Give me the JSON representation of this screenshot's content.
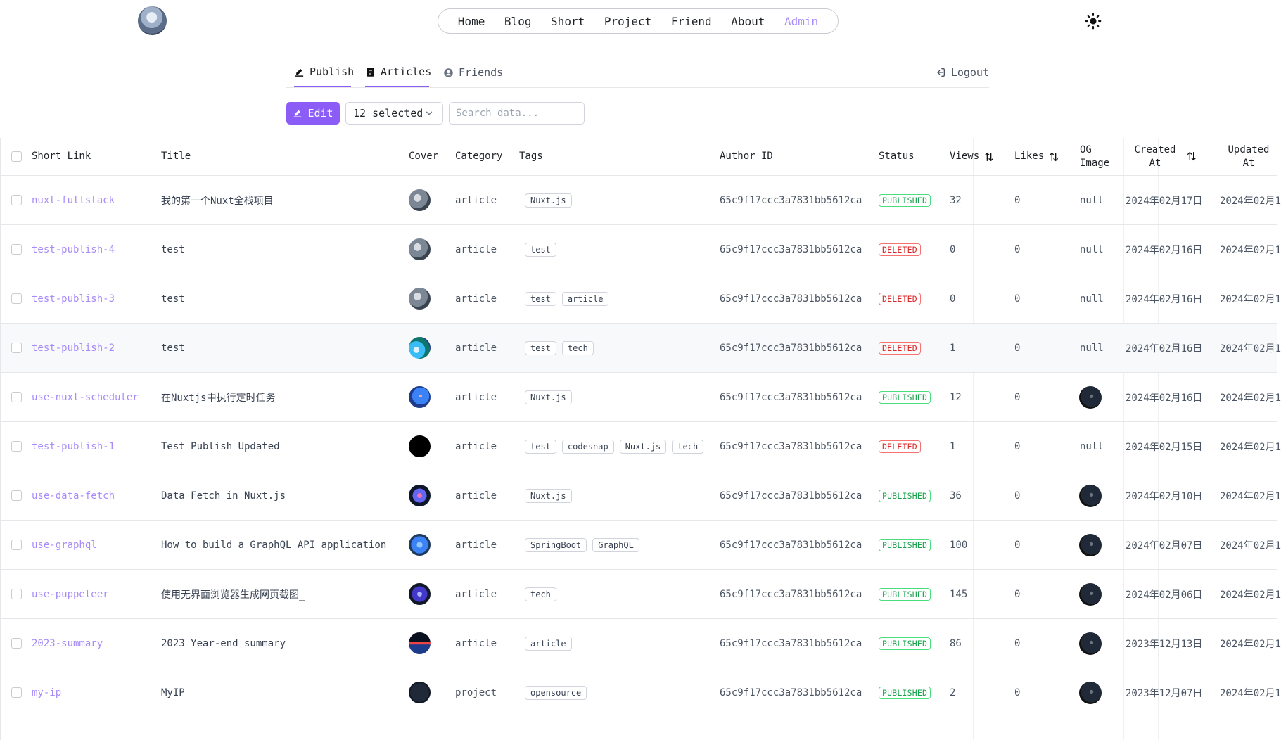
{
  "nav": {
    "items": [
      "Home",
      "Blog",
      "Short",
      "Project",
      "Friend",
      "About",
      "Admin"
    ],
    "active": "Admin"
  },
  "tabs": {
    "publish": "Publish",
    "articles": "Articles",
    "friends": "Friends",
    "logout": "Logout"
  },
  "toolbar": {
    "edit_label": "Edit",
    "selected_label": "12 selected",
    "search_placeholder": "Search data..."
  },
  "columns": {
    "short_link": "Short Link",
    "title": "Title",
    "cover": "Cover",
    "category": "Category",
    "tags": "Tags",
    "author_id": "Author ID",
    "status": "Status",
    "views": "Views",
    "likes": "Likes",
    "og_image_1": "OG",
    "og_image_2": "Image",
    "created_1": "Created",
    "created_2": "At",
    "updated_1": "Updated",
    "updated_2": "At"
  },
  "colors": {
    "accent": "#8b5cf6",
    "link": "#a78bfa",
    "published": "#16a34a",
    "deleted": "#dc2626"
  },
  "rows": [
    {
      "short": "nuxt-fullstack",
      "title": "我的第一个Nuxt全栈项目",
      "category": "article",
      "tags": [
        "Nuxt.js"
      ],
      "author": "65c9f17ccc3a7831bb5612ca",
      "status": "PUBLISHED",
      "views": "32",
      "likes": "0",
      "og": "null",
      "created": "2024年02月17日",
      "updated": "2024年02月1"
    },
    {
      "short": "test-publish-4",
      "title": "test",
      "category": "article",
      "tags": [
        "test"
      ],
      "author": "65c9f17ccc3a7831bb5612ca",
      "status": "DELETED",
      "views": "0",
      "likes": "0",
      "og": "null",
      "created": "2024年02月16日",
      "updated": "2024年02月1"
    },
    {
      "short": "test-publish-3",
      "title": "test",
      "category": "article",
      "tags": [
        "test",
        "article"
      ],
      "author": "65c9f17ccc3a7831bb5612ca",
      "status": "DELETED",
      "views": "0",
      "likes": "0",
      "og": "null",
      "created": "2024年02月16日",
      "updated": "2024年02月1"
    },
    {
      "short": "test-publish-2",
      "title": "test",
      "category": "article",
      "tags": [
        "test",
        "tech"
      ],
      "author": "65c9f17ccc3a7831bb5612ca",
      "status": "DELETED",
      "views": "1",
      "likes": "0",
      "og": "null",
      "created": "2024年02月16日",
      "updated": "2024年02月1"
    },
    {
      "short": "use-nuxt-scheduler",
      "title": "在Nuxtjs中执行定时任务",
      "category": "article",
      "tags": [
        "Nuxt.js"
      ],
      "author": "65c9f17ccc3a7831bb5612ca",
      "status": "PUBLISHED",
      "views": "12",
      "likes": "0",
      "og": "",
      "created": "2024年02月16日",
      "updated": "2024年02月1"
    },
    {
      "short": "test-publish-1",
      "title": "Test Publish Updated",
      "category": "article",
      "tags": [
        "test",
        "codesnap",
        "Nuxt.js",
        "tech"
      ],
      "author": "65c9f17ccc3a7831bb5612ca",
      "status": "DELETED",
      "views": "1",
      "likes": "0",
      "og": "null",
      "created": "2024年02月15日",
      "updated": "2024年02月1"
    },
    {
      "short": "use-data-fetch",
      "title": "Data Fetch in Nuxt.js",
      "category": "article",
      "tags": [
        "Nuxt.js"
      ],
      "author": "65c9f17ccc3a7831bb5612ca",
      "status": "PUBLISHED",
      "views": "36",
      "likes": "0",
      "og": "",
      "created": "2024年02月10日",
      "updated": "2024年02月1"
    },
    {
      "short": "use-graphql",
      "title": "How to build a GraphQL API application",
      "category": "article",
      "tags": [
        "SpringBoot",
        "GraphQL"
      ],
      "author": "65c9f17ccc3a7831bb5612ca",
      "status": "PUBLISHED",
      "views": "100",
      "likes": "0",
      "og": "",
      "created": "2024年02月07日",
      "updated": "2024年02月1"
    },
    {
      "short": "use-puppeteer",
      "title": "使用无界面浏览器生成网页截图_",
      "category": "article",
      "tags": [
        "tech"
      ],
      "author": "65c9f17ccc3a7831bb5612ca",
      "status": "PUBLISHED",
      "views": "145",
      "likes": "0",
      "og": "",
      "created": "2024年02月06日",
      "updated": "2024年02月1"
    },
    {
      "short": "2023-summary",
      "title": "2023 Year-end summary",
      "category": "article",
      "tags": [
        "article"
      ],
      "author": "65c9f17ccc3a7831bb5612ca",
      "status": "PUBLISHED",
      "views": "86",
      "likes": "0",
      "og": "",
      "created": "2023年12月13日",
      "updated": "2024年02月1"
    },
    {
      "short": "my-ip",
      "title": "MyIP",
      "category": "project",
      "tags": [
        "opensource"
      ],
      "author": "65c9f17ccc3a7831bb5612ca",
      "status": "PUBLISHED",
      "views": "2",
      "likes": "0",
      "og": "",
      "created": "2023年12月07日",
      "updated": "2024年02月1"
    }
  ]
}
